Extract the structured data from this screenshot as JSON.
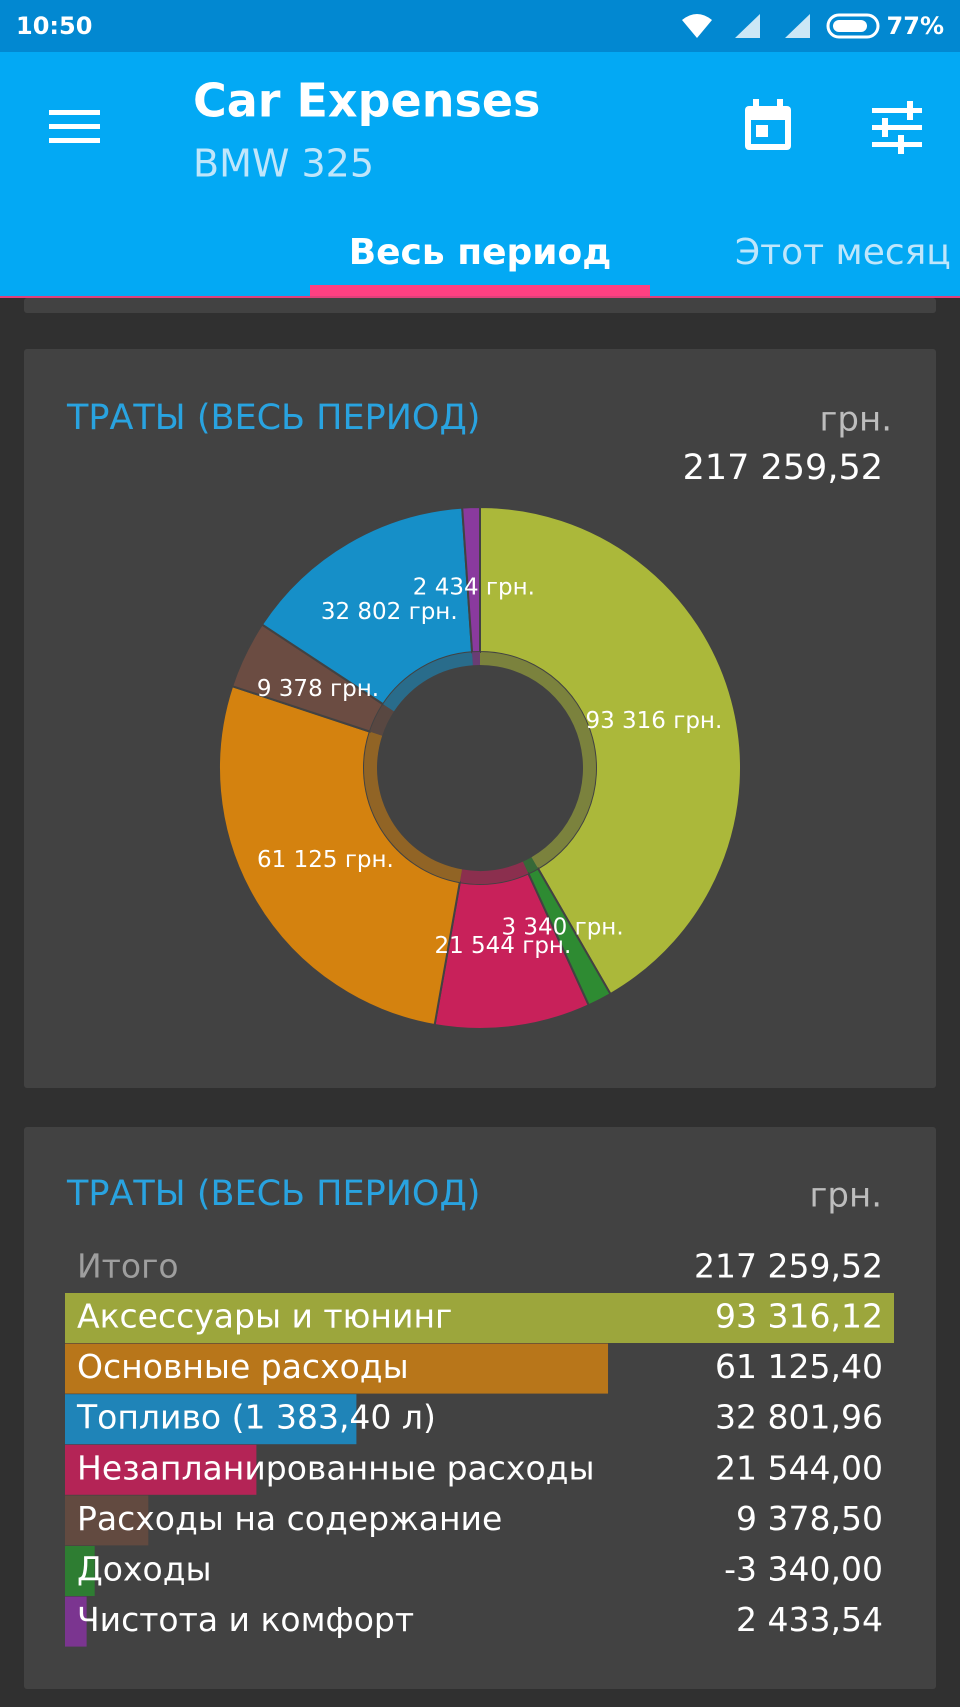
{
  "status_bar": {
    "time": "10:50",
    "battery": "77%"
  },
  "app_bar": {
    "title": "Car Expenses",
    "subtitle": "BMW 325",
    "tabs": [
      "Весь период",
      "Этот месяц"
    ]
  },
  "chart_data": {
    "type": "donut",
    "title": "ТРАТЫ (ВЕСЬ ПЕРИОД)",
    "unit": "грн.",
    "total": "217 259,52",
    "values": [
      93316,
      3340,
      21544,
      61125,
      9378,
      32802,
      2434
    ],
    "value_labels": [
      "93 316 грн.",
      "3 340 грн.",
      "21 544 грн.",
      "61 125 грн.",
      "9 378 грн.",
      "32 802 грн.",
      "2 434 грн."
    ],
    "colors": [
      "#abb83a",
      "#2e8b32",
      "#c8215a",
      "#d4820f",
      "#6b4c42",
      "#168fc8",
      "#8a3a9e"
    ]
  },
  "table": {
    "title": "ТРАТЫ (ВЕСЬ ПЕРИОД)",
    "unit": "грн.",
    "total": {
      "name": "Итого",
      "value": 217259.52,
      "label": "217 259,52"
    },
    "rows": [
      {
        "name": "Аксессуары и тюнинг",
        "value": 93316.12,
        "label": "93 316,12",
        "color": "#9ca63c"
      },
      {
        "name": "Основные расходы",
        "value": 61125.4,
        "label": "61 125,40",
        "color": "#b8761a"
      },
      {
        "name": "Топливо (1 383,40 л)",
        "value": 32801.96,
        "label": "32 801,96",
        "color": "#1f84b8"
      },
      {
        "name": "Незапланированные расходы",
        "value": 21544.0,
        "label": "21 544,00",
        "color": "#b42456"
      },
      {
        "name": "Расходы на содержание",
        "value": 9378.5,
        "label": "9 378,50",
        "color": "#624a40"
      },
      {
        "name": "Доходы",
        "value": -3340.0,
        "label": "-3 340,00",
        "color": "#2e7d32"
      },
      {
        "name": "Чистота и комфорт",
        "value": 2433.54,
        "label": "2 433,54",
        "color": "#7b3590"
      }
    ]
  }
}
